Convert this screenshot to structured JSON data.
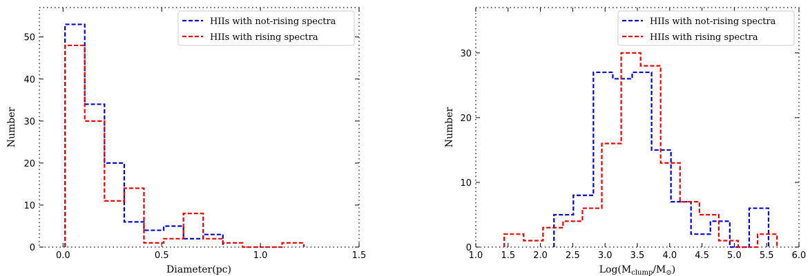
{
  "chart_data": [
    {
      "type": "step-histogram",
      "xlabel": "Diameter(pc)",
      "ylabel": "Number",
      "xlim": [
        -0.12,
        1.5
      ],
      "ylim": [
        0,
        57
      ],
      "xticks": [
        0.0,
        0.5,
        1.0,
        1.5
      ],
      "xtick_labels": [
        "0.0",
        "0.5",
        "1.0",
        "1.5"
      ],
      "yticks": [
        0,
        10,
        20,
        30,
        40,
        50
      ],
      "ytick_labels": [
        "0",
        "10",
        "20",
        "30",
        "40",
        "50"
      ],
      "legend_position": "top-right",
      "series": [
        {
          "name": "HIIs with not-rising spectra",
          "color": "#0000dd",
          "edges": [
            0.01,
            0.11,
            0.21,
            0.31,
            0.41,
            0.51,
            0.61,
            0.71,
            0.81
          ],
          "values": [
            53,
            34,
            20,
            6,
            4,
            5,
            2,
            3
          ]
        },
        {
          "name": "HIIs with rising spectra",
          "color": "#ee0000",
          "edges": [
            0.01,
            0.11,
            0.21,
            0.31,
            0.41,
            0.51,
            0.61,
            0.71,
            0.81,
            0.91,
            1.01,
            1.11,
            1.22
          ],
          "values": [
            48,
            30,
            11,
            14,
            1,
            2,
            8,
            2,
            1,
            0,
            0,
            1
          ]
        }
      ]
    },
    {
      "type": "step-histogram",
      "xlabel_main": "Log(M",
      "xlabel_sub1": "clump",
      "xlabel_mid": "/M",
      "xlabel_sub2": "⊙",
      "xlabel_end": ")",
      "ylabel": "Number",
      "xlim": [
        1.0,
        6.0
      ],
      "ylim": [
        0,
        37
      ],
      "xticks": [
        1.0,
        1.5,
        2.0,
        2.5,
        3.0,
        3.5,
        4.0,
        4.5,
        5.0,
        5.5,
        6.0
      ],
      "xtick_labels": [
        "1.0",
        "1.5",
        "2.0",
        "2.5",
        "3.0",
        "3.5",
        "4.0",
        "4.5",
        "5.0",
        "5.5",
        "6.0"
      ],
      "yticks": [
        0,
        10,
        20,
        30
      ],
      "ytick_labels": [
        "0",
        "10",
        "20",
        "30"
      ],
      "legend_position": "top-right",
      "series": [
        {
          "name": "HIIs with not-rising spectra",
          "color": "#0000dd",
          "edges": [
            2.21,
            2.51,
            2.82,
            3.12,
            3.42,
            3.72,
            4.02,
            4.33,
            4.63,
            4.93,
            5.23,
            5.53
          ],
          "values": [
            5,
            8,
            27,
            26,
            27,
            15,
            7,
            2,
            4,
            0,
            6
          ]
        },
        {
          "name": "HIIs with rising spectra",
          "color": "#ee0000",
          "edges": [
            1.44,
            1.74,
            2.04,
            2.35,
            2.65,
            2.95,
            3.25,
            3.55,
            3.86,
            4.16,
            4.46,
            4.76,
            5.06,
            5.36,
            5.66
          ],
          "values": [
            2,
            1,
            3,
            4,
            6,
            16,
            30,
            28,
            13,
            7,
            5,
            1,
            0,
            2
          ]
        }
      ]
    }
  ]
}
